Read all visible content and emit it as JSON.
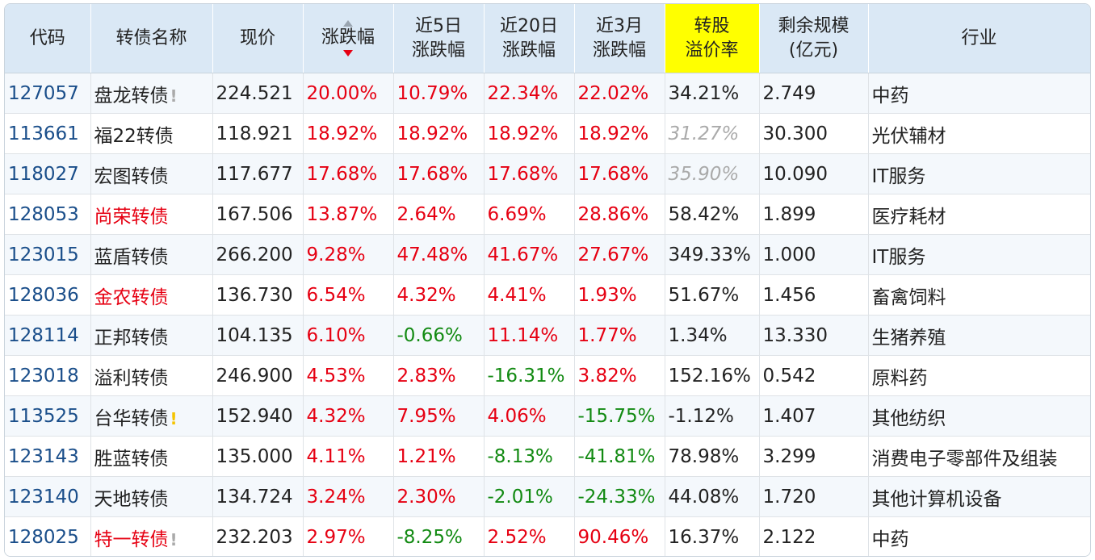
{
  "columns": [
    {
      "label": "代码"
    },
    {
      "label": "转债名称"
    },
    {
      "label": "现价"
    },
    {
      "label": "涨跌幅"
    },
    {
      "label": "近5日\n涨跌幅"
    },
    {
      "label": "近20日\n涨跌幅"
    },
    {
      "label": "近3月\n涨跌幅"
    },
    {
      "label": "转股\n溢价率"
    },
    {
      "label": "剩余规模\n(亿元)"
    },
    {
      "label": "行业"
    }
  ],
  "colors": {
    "up": "#e60012",
    "down": "#128a12",
    "code": "#1a4e8a",
    "header": "#dae8f5",
    "highlight": "#ffff00"
  },
  "rows": [
    {
      "code": "127057",
      "name": "盘龙转债",
      "name_color": "normal",
      "mark": "!",
      "mark_color": "grey",
      "price": "224.521",
      "chg": "20.00%",
      "chg5": "10.79%",
      "chg20": "22.34%",
      "chg3m": "22.02%",
      "premium": "34.21%",
      "premium_muted": false,
      "scale": "2.749",
      "industry": "中药"
    },
    {
      "code": "113661",
      "name": "福22转债",
      "name_color": "normal",
      "mark": "",
      "mark_color": "",
      "price": "118.921",
      "chg": "18.92%",
      "chg5": "18.92%",
      "chg20": "18.92%",
      "chg3m": "18.92%",
      "premium": "31.27%",
      "premium_muted": true,
      "scale": "30.300",
      "industry": "光伏辅材"
    },
    {
      "code": "118027",
      "name": "宏图转债",
      "name_color": "normal",
      "mark": "",
      "mark_color": "",
      "price": "117.677",
      "chg": "17.68%",
      "chg5": "17.68%",
      "chg20": "17.68%",
      "chg3m": "17.68%",
      "premium": "35.90%",
      "premium_muted": true,
      "scale": "10.090",
      "industry": "IT服务"
    },
    {
      "code": "128053",
      "name": "尚荣转债",
      "name_color": "red",
      "mark": "",
      "mark_color": "",
      "price": "167.506",
      "chg": "13.87%",
      "chg5": "2.64%",
      "chg20": "6.69%",
      "chg3m": "28.86%",
      "premium": "58.42%",
      "premium_muted": false,
      "scale": "1.899",
      "industry": "医疗耗材"
    },
    {
      "code": "123015",
      "name": "蓝盾转债",
      "name_color": "normal",
      "mark": "",
      "mark_color": "",
      "price": "266.200",
      "chg": "9.28%",
      "chg5": "47.48%",
      "chg20": "41.67%",
      "chg3m": "27.67%",
      "premium": "349.33%",
      "premium_muted": false,
      "scale": "1.000",
      "industry": "IT服务"
    },
    {
      "code": "128036",
      "name": "金农转债",
      "name_color": "red",
      "mark": "",
      "mark_color": "",
      "price": "136.730",
      "chg": "6.54%",
      "chg5": "4.32%",
      "chg20": "4.41%",
      "chg3m": "1.93%",
      "premium": "51.67%",
      "premium_muted": false,
      "scale": "1.456",
      "industry": "畜禽饲料"
    },
    {
      "code": "128114",
      "name": "正邦转债",
      "name_color": "normal",
      "mark": "",
      "mark_color": "",
      "price": "104.135",
      "chg": "6.10%",
      "chg5": "-0.66%",
      "chg20": "11.14%",
      "chg3m": "1.77%",
      "premium": "1.34%",
      "premium_muted": false,
      "scale": "13.330",
      "industry": "生猪养殖"
    },
    {
      "code": "123018",
      "name": "溢利转债",
      "name_color": "normal",
      "mark": "",
      "mark_color": "",
      "price": "246.900",
      "chg": "4.53%",
      "chg5": "2.83%",
      "chg20": "-16.31%",
      "chg3m": "3.82%",
      "premium": "152.16%",
      "premium_muted": false,
      "scale": "0.542",
      "industry": "原料药"
    },
    {
      "code": "113525",
      "name": "台华转债",
      "name_color": "normal",
      "mark": "!",
      "mark_color": "yellow",
      "price": "152.940",
      "chg": "4.32%",
      "chg5": "7.95%",
      "chg20": "4.06%",
      "chg3m": "-15.75%",
      "premium": "-1.12%",
      "premium_muted": false,
      "scale": "1.407",
      "industry": "其他纺织"
    },
    {
      "code": "123143",
      "name": "胜蓝转债",
      "name_color": "normal",
      "mark": "",
      "mark_color": "",
      "price": "135.000",
      "chg": "4.11%",
      "chg5": "1.21%",
      "chg20": "-8.13%",
      "chg3m": "-41.81%",
      "premium": "78.98%",
      "premium_muted": false,
      "scale": "3.299",
      "industry": "消费电子零部件及组装"
    },
    {
      "code": "123140",
      "name": "天地转债",
      "name_color": "normal",
      "mark": "",
      "mark_color": "",
      "price": "134.724",
      "chg": "3.24%",
      "chg5": "2.30%",
      "chg20": "-2.01%",
      "chg3m": "-24.33%",
      "premium": "44.08%",
      "premium_muted": false,
      "scale": "1.720",
      "industry": "其他计算机设备"
    },
    {
      "code": "128025",
      "name": "特一转债",
      "name_color": "red",
      "mark": "!",
      "mark_color": "grey",
      "price": "232.203",
      "chg": "2.97%",
      "chg5": "-8.25%",
      "chg20": "2.52%",
      "chg3m": "90.46%",
      "premium": "16.37%",
      "premium_muted": false,
      "scale": "2.122",
      "industry": "中药"
    }
  ]
}
